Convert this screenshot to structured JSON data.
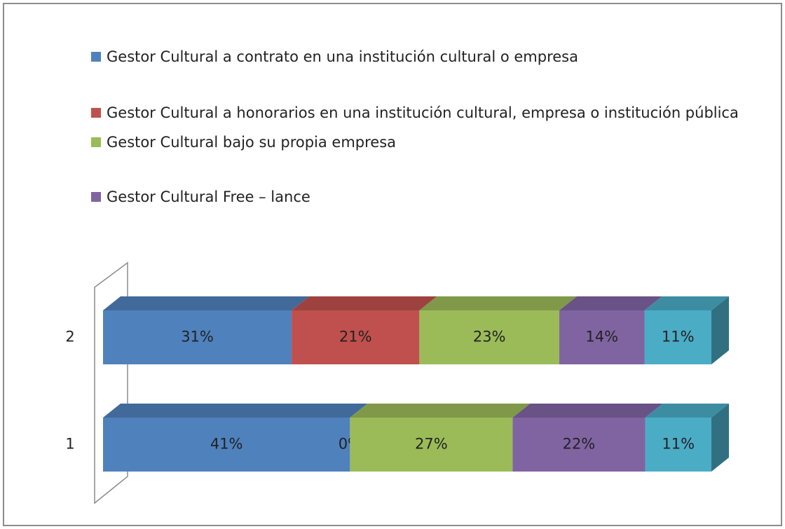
{
  "chart_data": {
    "type": "bar",
    "orientation": "horizontal",
    "stacked": "percent",
    "categories": [
      "1",
      "2"
    ],
    "series": [
      {
        "name": "Gestor Cultural a contrato en una institución cultural o empresa",
        "color": "#4f81bd",
        "values": [
          41,
          31
        ],
        "value_labels": [
          "41%",
          "31%"
        ]
      },
      {
        "name": "Gestor Cultural a honorarios en una institución cultural, empresa o institución pública",
        "color": "#c0504d",
        "values": [
          0,
          21
        ],
        "value_labels": [
          "0%",
          "21%"
        ]
      },
      {
        "name": "Gestor Cultural bajo su propia empresa",
        "color": "#9bbb59",
        "values": [
          27,
          23
        ],
        "value_labels": [
          "27%",
          "23%"
        ]
      },
      {
        "name": "Gestor Cultural Free – lance",
        "color": "#8064a2",
        "values": [
          22,
          14
        ],
        "value_labels": [
          "22%",
          "14%"
        ]
      },
      {
        "color": "#4bacc6",
        "values": [
          11,
          11
        ],
        "value_labels": [
          "11%",
          "11%"
        ]
      }
    ]
  }
}
